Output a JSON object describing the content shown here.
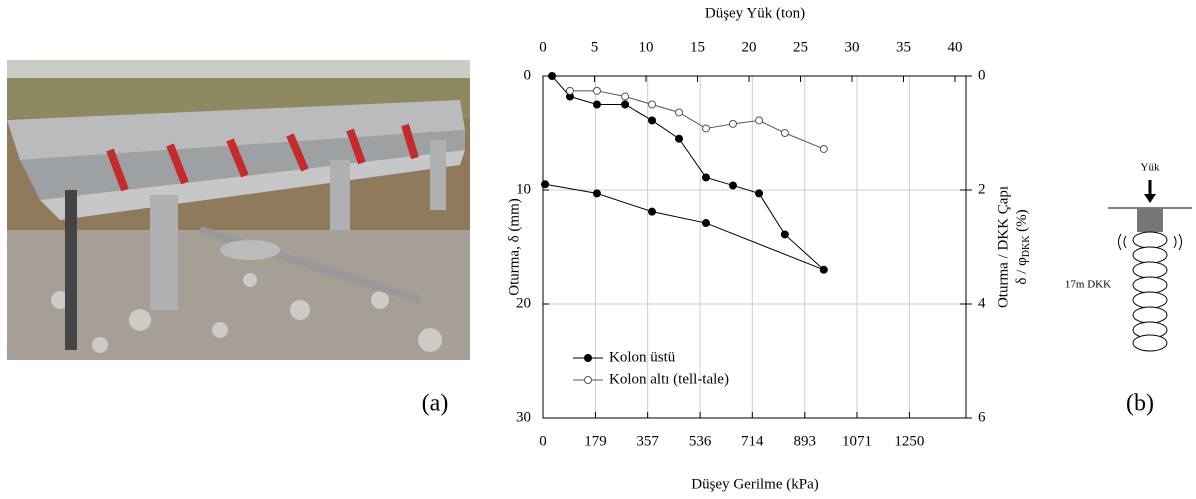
{
  "chart_data": {
    "type": "line",
    "xlabel": "Düşey Gerilme (kPa)",
    "x2label": "Düşey Yük (ton)",
    "ylabel": "Oturma, δ (mm)",
    "y2label": "Oturma / DKK Çapı",
    "y2label_2": "δ / φ",
    "y2label_2_sub": "DKK",
    "y2label_2_after": " (%)",
    "xlim": [
      0,
      1443
    ],
    "xticks": [
      0,
      179,
      357,
      536,
      714,
      893,
      1071,
      1250
    ],
    "x2lim": [
      0,
      41.07
    ],
    "x2ticks": [
      0,
      5,
      10,
      15,
      20,
      25,
      30,
      35,
      40
    ],
    "ylim": [
      0,
      30
    ],
    "yticks": [
      0,
      10,
      20,
      30
    ],
    "y2lim": [
      0,
      6
    ],
    "y2ticks": [
      0,
      2,
      4,
      6
    ],
    "y_inverted": true,
    "grid": true,
    "legend": "lower left",
    "series": [
      {
        "name": "Kolon üstü",
        "color": "#000000",
        "marker": "filled",
        "x": [
          31,
          92,
          184,
          280,
          372,
          464,
          556,
          648,
          737,
          825,
          958,
          556,
          372,
          184,
          7
        ],
        "values": [
          0,
          1.8,
          2.5,
          2.5,
          3.9,
          5.5,
          8.9,
          9.6,
          10.3,
          13.9,
          17.0,
          12.9,
          11.9,
          10.3,
          9.5
        ]
      },
      {
        "name": "Kolon altı  (tell-tale)",
        "color": "#555555",
        "marker": "open",
        "x": [
          92,
          184,
          280,
          372,
          464,
          556,
          648,
          737,
          825,
          958
        ],
        "values": [
          1.3,
          1.3,
          1.8,
          2.5,
          3.2,
          4.6,
          4.2,
          3.9,
          5.0,
          6.4
        ]
      }
    ]
  },
  "figure": {
    "photo_label": "(a)",
    "diagram_label": "(b)",
    "diagram_load": "Yük",
    "diagram_column": "17m DKK"
  }
}
